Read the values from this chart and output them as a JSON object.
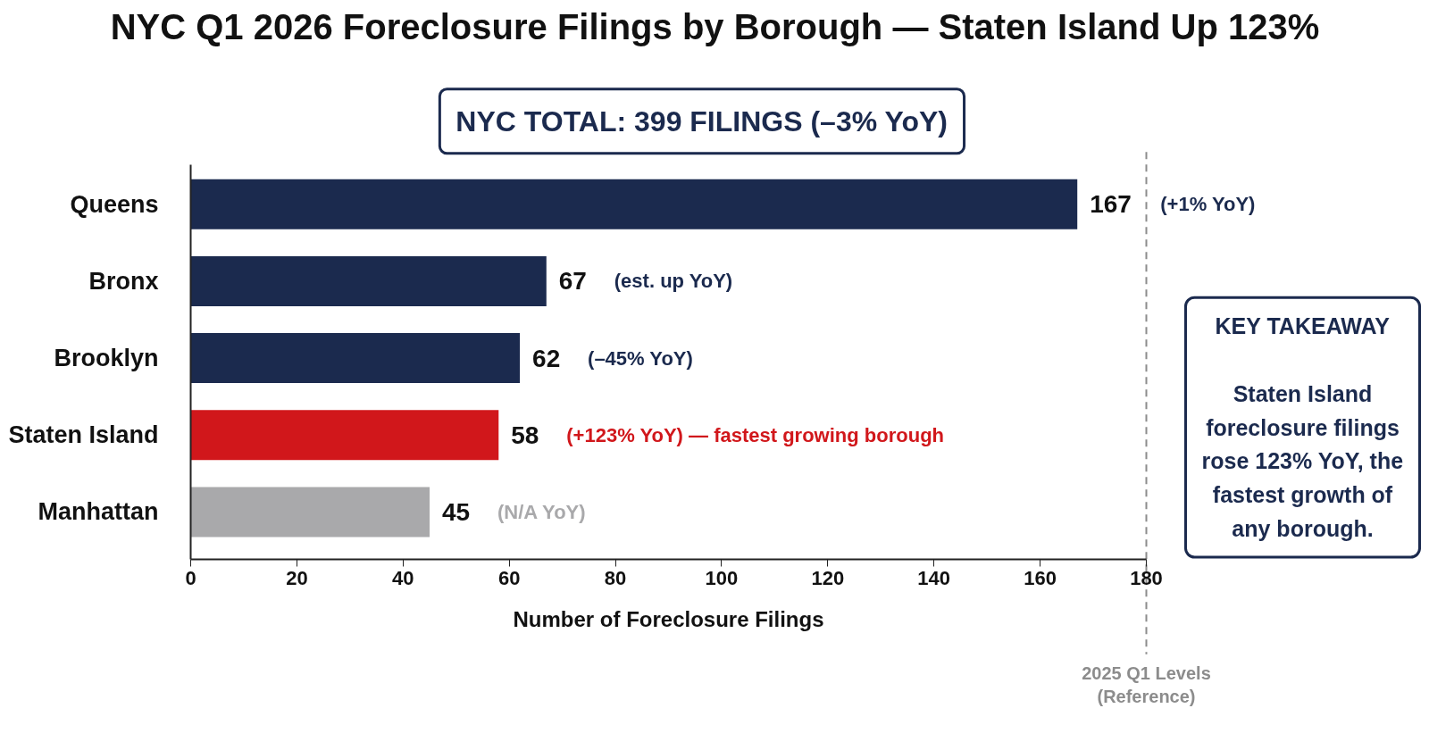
{
  "chart_data": {
    "type": "bar",
    "orientation": "horizontal",
    "title": "NYC Q1 2026 Foreclosure Filings by Borough — Staten Island Up 123%",
    "subtitle": "NYC TOTAL: 399 FILINGS (–3% YoY)",
    "xlabel": "Number of Foreclosure Filings",
    "categories": [
      "Queens",
      "Bronx",
      "Brooklyn",
      "Staten Island",
      "Manhattan"
    ],
    "values": [
      167,
      67,
      62,
      58,
      45
    ],
    "colors": [
      "#1b2a4e",
      "#1b2a4e",
      "#1b2a4e",
      "#d1171b",
      "#a9a9ab"
    ],
    "data_labels": true,
    "xlim": [
      0,
      180
    ],
    "xticks": [
      0,
      20,
      40,
      60,
      80,
      100,
      120,
      140,
      160,
      180
    ],
    "grid": false,
    "ref_lines": [
      {
        "axis": "x",
        "value": 180,
        "label": "2025 Q1 Levels\n(Reference)",
        "color": "#8c8c8c",
        "line_style": "dashed"
      }
    ],
    "annotations": [
      "(+1% YoY)",
      "(est. up YoY)",
      "(–45% YoY)",
      "(+123% YoY) — fastest growing borough",
      "(N/A YoY)",
      "KEY TAKEAWAY",
      "Staten Island foreclosure filings rose 123% YoY, the fastest growth of any borough."
    ]
  }
}
